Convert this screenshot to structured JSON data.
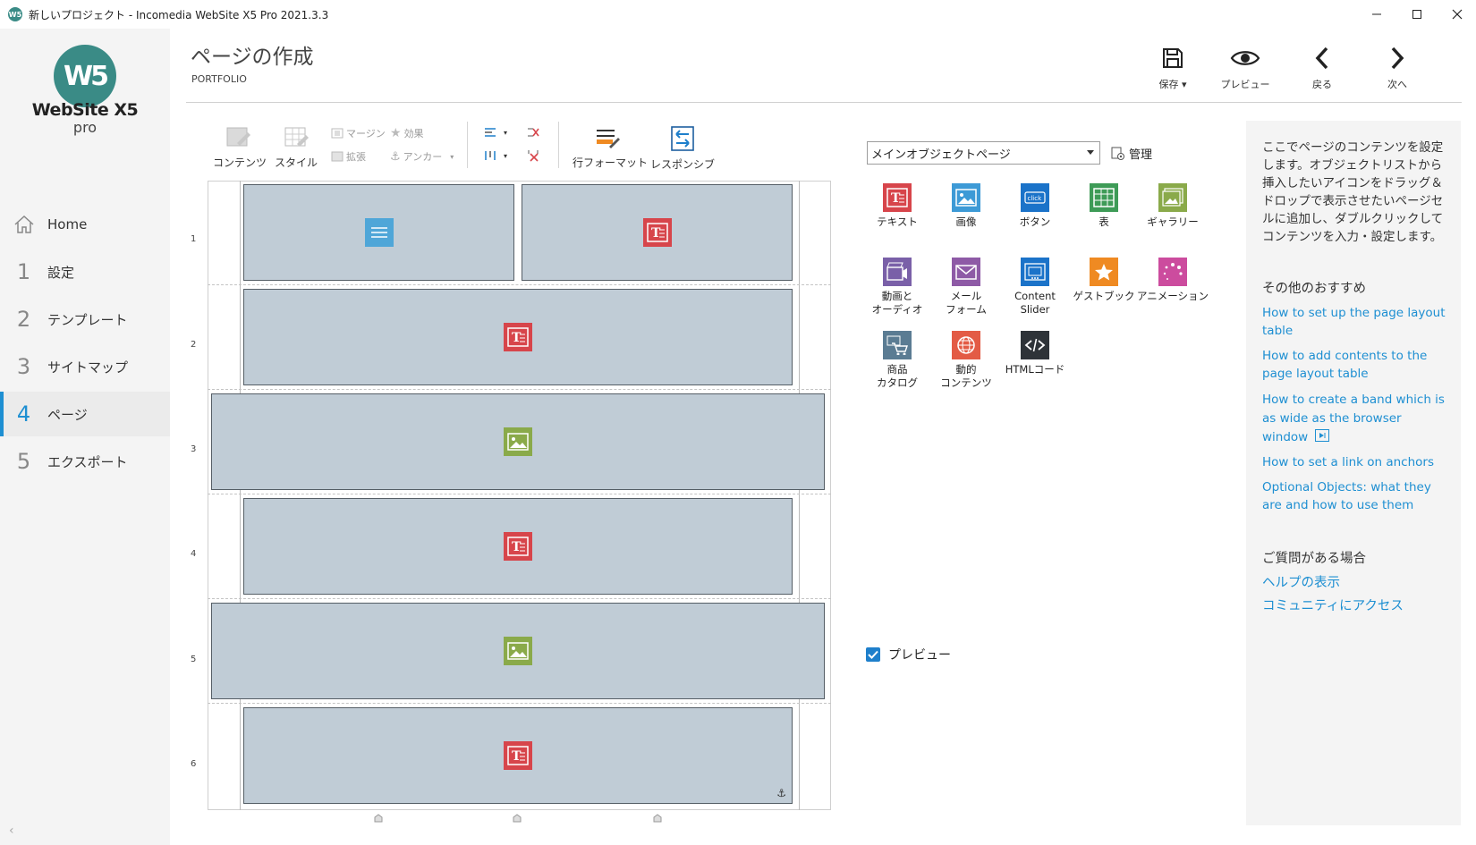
{
  "window": {
    "title": "新しいプロジェクト - Incomedia WebSite X5 Pro 2021.3.3",
    "app_icon_text": "W5",
    "controls": [
      "minimize",
      "maximize",
      "close"
    ]
  },
  "sidebar": {
    "logo_mark": "W5",
    "logo_name": "WebSite X5",
    "logo_edition": "pro",
    "home_label": "Home",
    "items": [
      {
        "num": "1",
        "label": "設定"
      },
      {
        "num": "2",
        "label": "テンプレート"
      },
      {
        "num": "3",
        "label": "サイトマップ"
      },
      {
        "num": "4",
        "label": "ページ",
        "active": true
      },
      {
        "num": "5",
        "label": "エクスポート"
      }
    ],
    "collapse_symbol": "‹"
  },
  "header": {
    "title": "ページの作成",
    "subtitle": "PORTFOLIO",
    "buttons": {
      "save": "保存",
      "preview": "プレビュー",
      "back": "戻る",
      "next": "次へ"
    }
  },
  "toolbar": {
    "content": "コンテンツ",
    "style": "スタイル",
    "margin": "マージン",
    "effect": "効果",
    "expand": "拡張",
    "anchor": "アンカー",
    "row_format": "行フォーマット",
    "responsive": "レスポンシブ"
  },
  "grid": {
    "rows": [
      "1",
      "2",
      "3",
      "4",
      "5",
      "6"
    ]
  },
  "objects_panel": {
    "dropdown_value": "メインオブジェクトページ",
    "manage_label": "管理",
    "objects": [
      {
        "label": "テキスト",
        "icon": "text-icon",
        "color": "#d7454b"
      },
      {
        "label": "画像",
        "icon": "image-icon",
        "color": "#3d9ad6"
      },
      {
        "label": "ボタン",
        "icon": "button-icon",
        "color": "#1b73c9",
        "badge": "click"
      },
      {
        "label": "表",
        "icon": "table-icon",
        "color": "#3e9b57"
      },
      {
        "label": "ギャラリー",
        "icon": "gallery-icon",
        "color": "#8aaa4a"
      },
      {
        "label": "動画と\nオーディオ",
        "icon": "video-icon",
        "color": "#7a60a8"
      },
      {
        "label": "メール\nフォーム",
        "icon": "mail-icon",
        "color": "#8e5aa6"
      },
      {
        "label": "Content\nSlider",
        "icon": "slider-icon",
        "color": "#1b73c9"
      },
      {
        "label": "ゲストブック",
        "icon": "guestbook-icon",
        "color": "#ef8a22"
      },
      {
        "label": "アニメーション",
        "icon": "animation-icon",
        "color": "#cc4c9e"
      },
      {
        "label": "商品\nカタログ",
        "icon": "cart-icon",
        "color": "#5b7c93"
      },
      {
        "label": "動的\nコンテンツ",
        "icon": "globe-icon",
        "color": "#e35b45"
      },
      {
        "label": "HTMLコード",
        "icon": "code-icon",
        "color": "#2e3338"
      }
    ],
    "preview_label": "プレビュー",
    "preview_checked": true
  },
  "help": {
    "description": "ここでページのコンテンツを設定します。オブジェクトリストから挿入したいアイコンをドラッグ＆ドロップで表示させたいページセルに追加し、ダブルクリックしてコンテンツを入力・設定します。",
    "other_title": "その他のおすすめ",
    "links": [
      "How to set up the page layout table",
      "How to add contents to the page layout table",
      "How to create a band which is as wide as the browser window",
      "How to set a link on anchors",
      "Optional Objects: what they are and how to use them"
    ],
    "question_title": "ご質問がある場合",
    "question_links": [
      "ヘルプの表示",
      "コミュニティにアクセス"
    ]
  }
}
